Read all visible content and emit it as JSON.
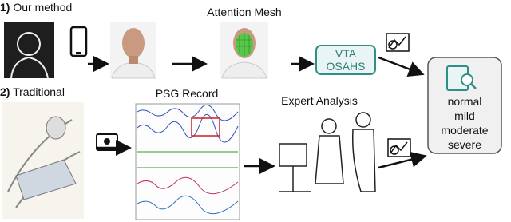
{
  "rows": [
    {
      "number": "1)",
      "label": "Our method"
    },
    {
      "number": "2)",
      "label": "Traditional"
    }
  ],
  "nodes": {
    "mesh": "Attention Mesh",
    "model": [
      "VTA",
      "OSAHS"
    ],
    "psg": "PSG Record",
    "expert": "Expert Analysis",
    "outcome": [
      "normal",
      "mild",
      "moderate",
      "severe"
    ]
  }
}
